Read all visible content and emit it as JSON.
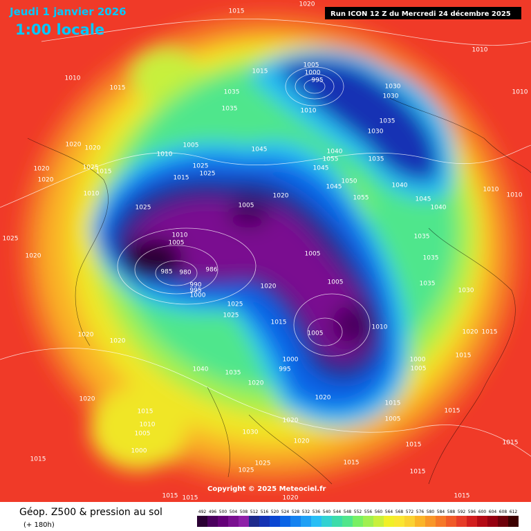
{
  "header": {
    "date": "Jeudi 1 janvier 2026",
    "time": "1:00 locale",
    "run": "Run ICON 12 Z du Mercredi 24 décembre 2025"
  },
  "footer": {
    "title": "Géop. Z500 & pression au sol",
    "lead": "(+ 180h)",
    "copyright": "Copyright © 2025 Meteociel.fr"
  },
  "legend": {
    "values": [
      492,
      496,
      500,
      504,
      508,
      512,
      516,
      520,
      524,
      528,
      532,
      536,
      540,
      544,
      548,
      552,
      556,
      560,
      564,
      568,
      572,
      576,
      580,
      584,
      588,
      592,
      596,
      600,
      604,
      608,
      612
    ],
    "colors": [
      "#2a0033",
      "#4b005e",
      "#640078",
      "#7a1090",
      "#8e20a8",
      "#1e2a8c",
      "#1432b4",
      "#0a46d2",
      "#0a64e6",
      "#1482f0",
      "#1ea0f5",
      "#28bef5",
      "#32d2d2",
      "#3cdcaa",
      "#50e68c",
      "#78f064",
      "#a0f050",
      "#c8f03c",
      "#f0f028",
      "#fae632",
      "#fad232",
      "#fab428",
      "#f89628",
      "#f57828",
      "#f05a28",
      "#e63c28",
      "#d21e1e",
      "#b40a14",
      "#960010",
      "#6e000a",
      "#3c0000"
    ]
  },
  "pressure_labels": [
    1015,
    1020,
    1010,
    1015,
    1015,
    1005,
    1000,
    995,
    1035,
    1035,
    1010,
    1030,
    1030,
    1035,
    1030,
    1010,
    1010,
    1020,
    1020,
    1020,
    1025,
    1015,
    1020,
    1010,
    1005,
    1010,
    1025,
    1015,
    1025,
    1045,
    1040,
    1055,
    1045,
    1035,
    1050,
    1045,
    1055,
    1040,
    1045,
    1010,
    1010,
    1025,
    1005,
    1020,
    1010,
    1005,
    985,
    980,
    986,
    990,
    995,
    1000,
    1005,
    1005,
    1020,
    1015,
    1025,
    1025,
    1005,
    1010,
    1025,
    1020,
    1020,
    1020,
    1040,
    1035,
    1020,
    1000,
    995,
    1000,
    1005,
    1020,
    1015,
    1010,
    1005,
    1000,
    1030,
    1020,
    1020,
    1020,
    1015,
    1005,
    1015,
    1015,
    1015,
    1015,
    1025,
    1025,
    1015,
    1015,
    1015,
    1015,
    1020,
    1015,
    1035,
    1030,
    1020,
    1015,
    1015,
    1035,
    1035,
    1040
  ]
}
